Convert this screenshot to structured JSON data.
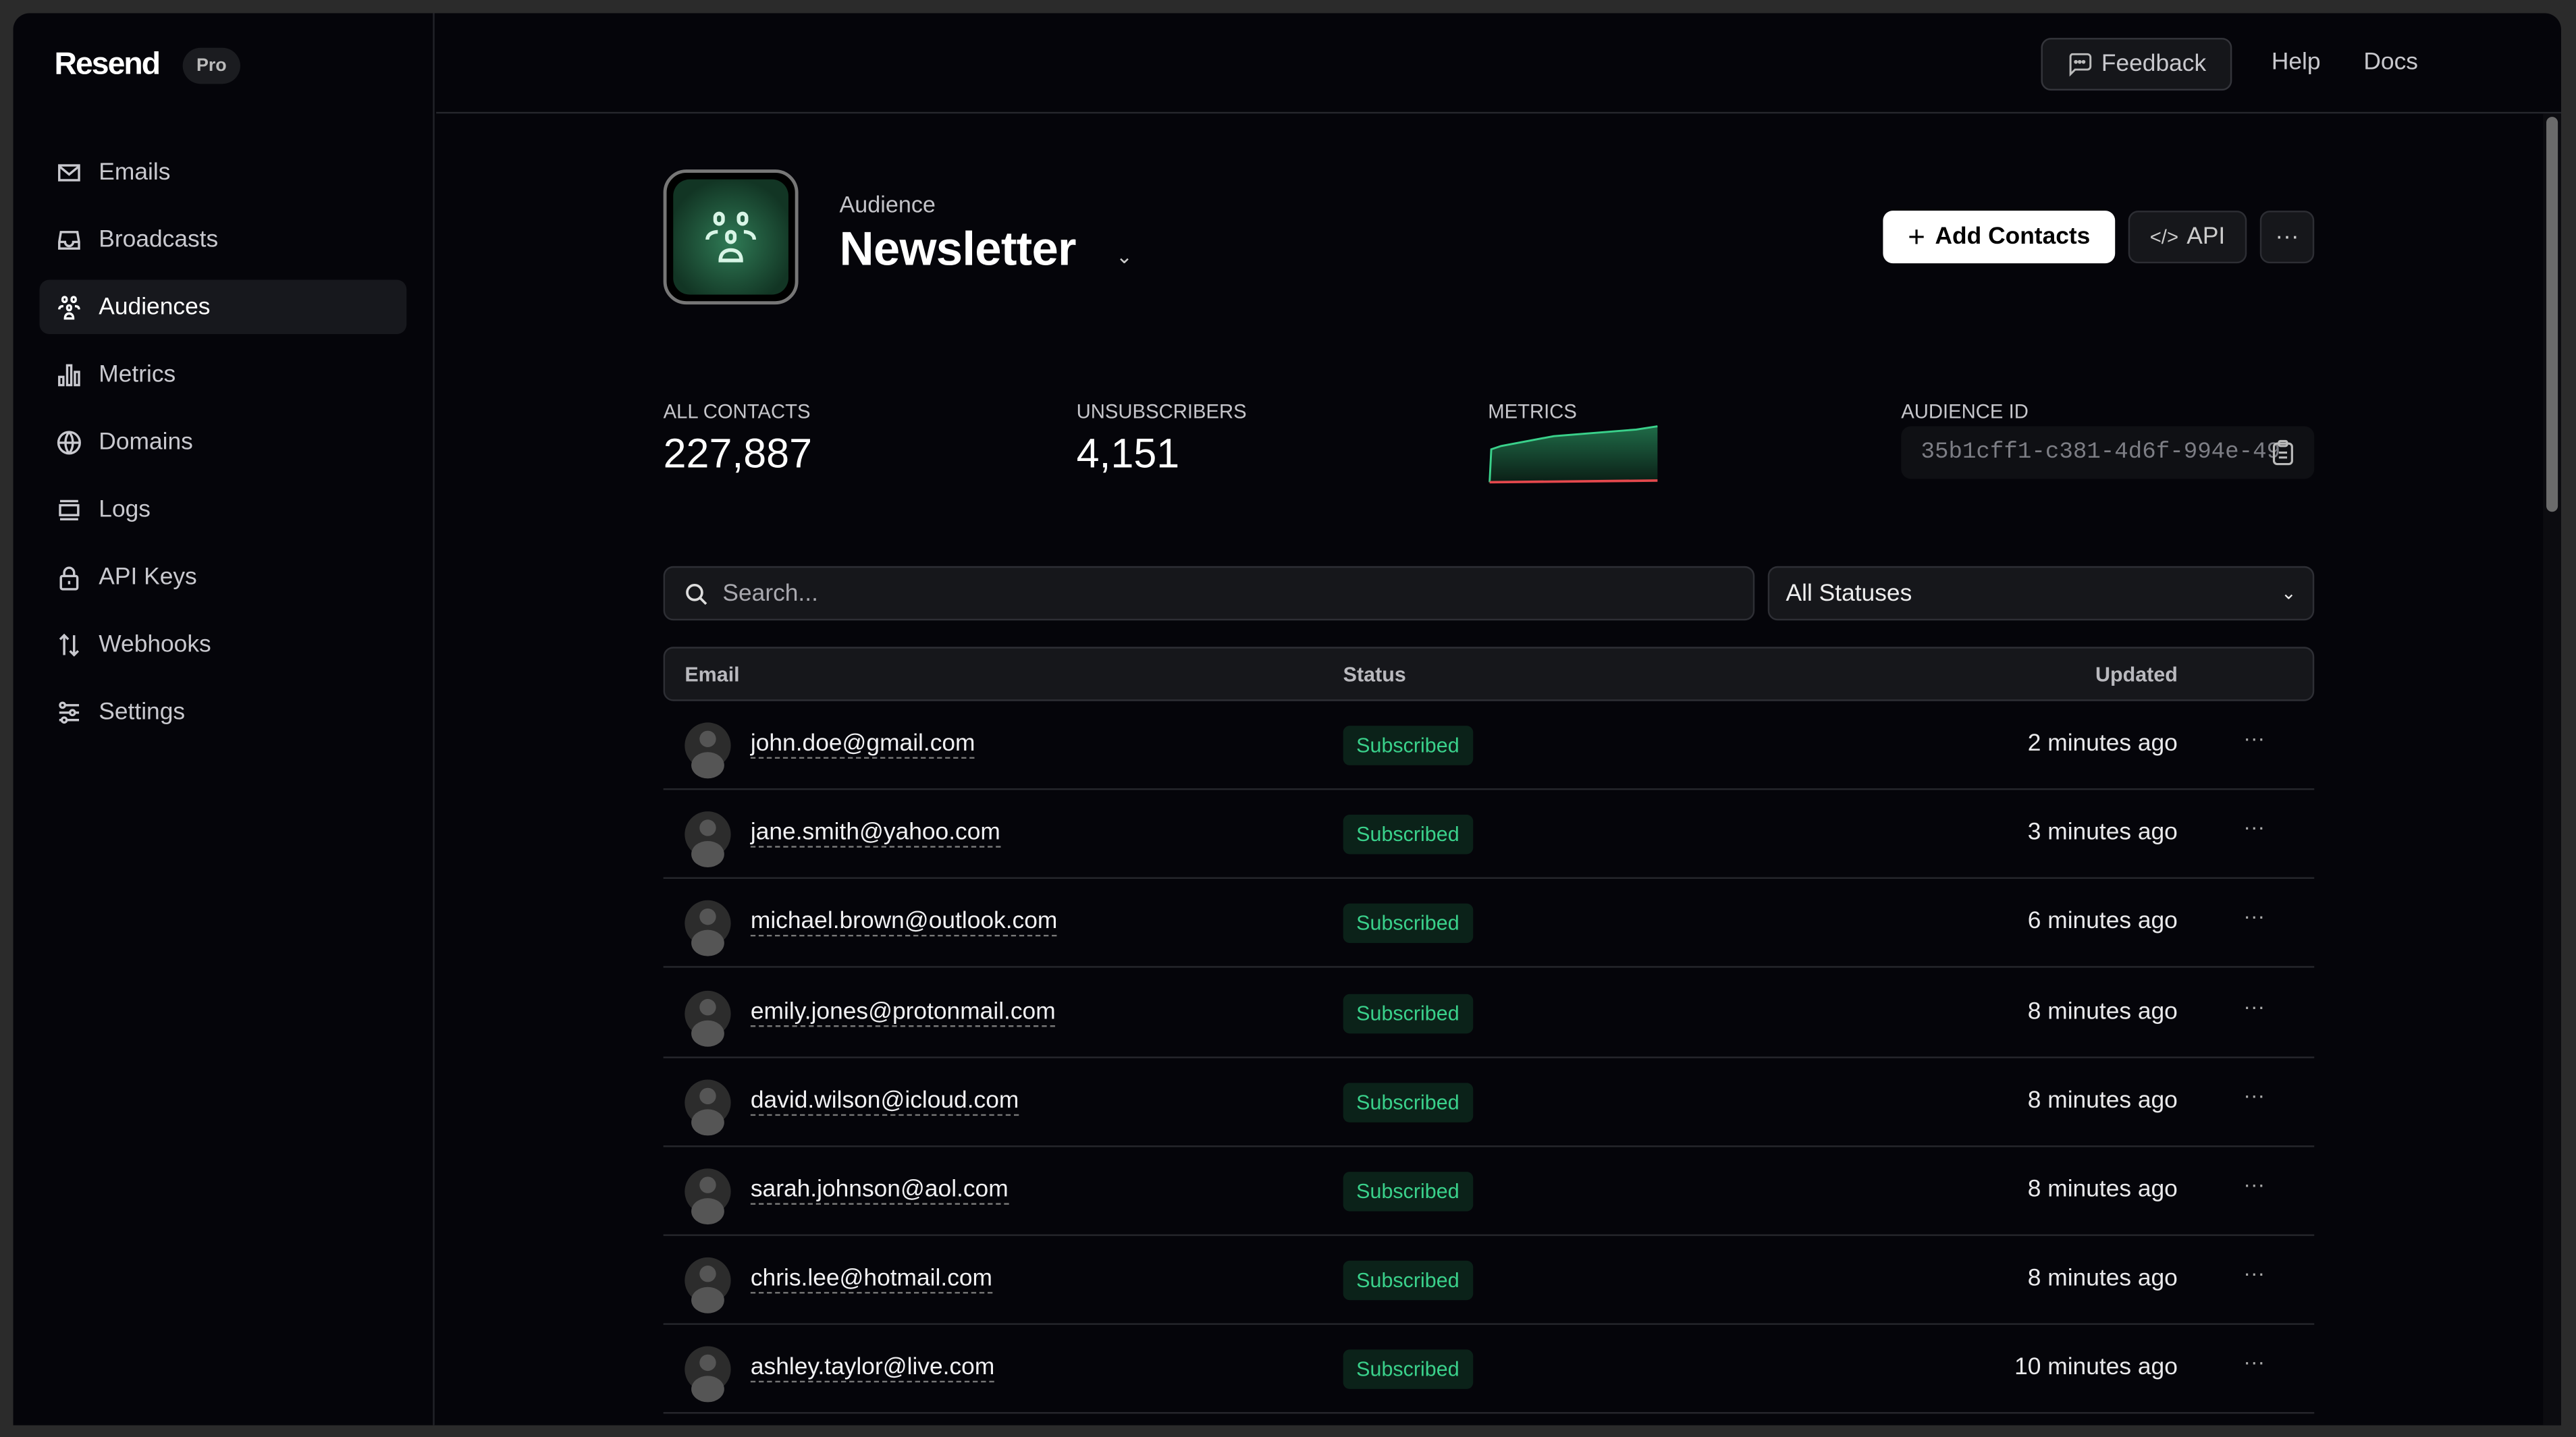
{
  "brand": {
    "name": "Resend",
    "plan": "Pro"
  },
  "sidebar": {
    "items": [
      {
        "label": "Emails",
        "icon": "mail-icon"
      },
      {
        "label": "Broadcasts",
        "icon": "inbox-icon"
      },
      {
        "label": "Audiences",
        "icon": "users-icon",
        "active": true
      },
      {
        "label": "Metrics",
        "icon": "bar-chart-icon"
      },
      {
        "label": "Domains",
        "icon": "globe-icon"
      },
      {
        "label": "Logs",
        "icon": "logs-icon"
      },
      {
        "label": "API Keys",
        "icon": "lock-icon"
      },
      {
        "label": "Webhooks",
        "icon": "arrows-up-down-icon"
      },
      {
        "label": "Settings",
        "icon": "sliders-icon"
      }
    ]
  },
  "header": {
    "feedback": "Feedback",
    "help": "Help",
    "docs": "Docs"
  },
  "audience": {
    "label": "Audience",
    "name": "Newsletter",
    "add_contacts": "Add Contacts",
    "api": "API",
    "more": "···"
  },
  "stats": {
    "all_contacts_label": "ALL CONTACTS",
    "all_contacts": "227,887",
    "unsubscribers_label": "UNSUBSCRIBERS",
    "unsubscribers": "4,151",
    "metrics_label": "METRICS",
    "audience_id_label": "AUDIENCE ID",
    "audience_id": "35b1cff1-c381-4d6f-994e-49"
  },
  "filters": {
    "search_placeholder": "Search...",
    "status": "All Statuses"
  },
  "table": {
    "columns": {
      "email": "Email",
      "status": "Status",
      "updated": "Updated"
    },
    "rows": [
      {
        "email": "john.doe@gmail.com",
        "status": "Subscribed",
        "updated": "2 minutes ago"
      },
      {
        "email": "jane.smith@yahoo.com",
        "status": "Subscribed",
        "updated": "3 minutes ago"
      },
      {
        "email": "michael.brown@outlook.com",
        "status": "Subscribed",
        "updated": "6 minutes ago"
      },
      {
        "email": "emily.jones@protonmail.com",
        "status": "Subscribed",
        "updated": "8 minutes ago"
      },
      {
        "email": "david.wilson@icloud.com",
        "status": "Subscribed",
        "updated": "8 minutes ago"
      },
      {
        "email": "sarah.johnson@aol.com",
        "status": "Subscribed",
        "updated": "8 minutes ago"
      },
      {
        "email": "chris.lee@hotmail.com",
        "status": "Subscribed",
        "updated": "8 minutes ago"
      },
      {
        "email": "ashley.taylor@live.com",
        "status": "Subscribed",
        "updated": "10 minutes ago"
      }
    ]
  },
  "colors": {
    "accent_green": "#3ad18b",
    "unsubscribe_red": "#e5484d",
    "background": "#05050a"
  }
}
